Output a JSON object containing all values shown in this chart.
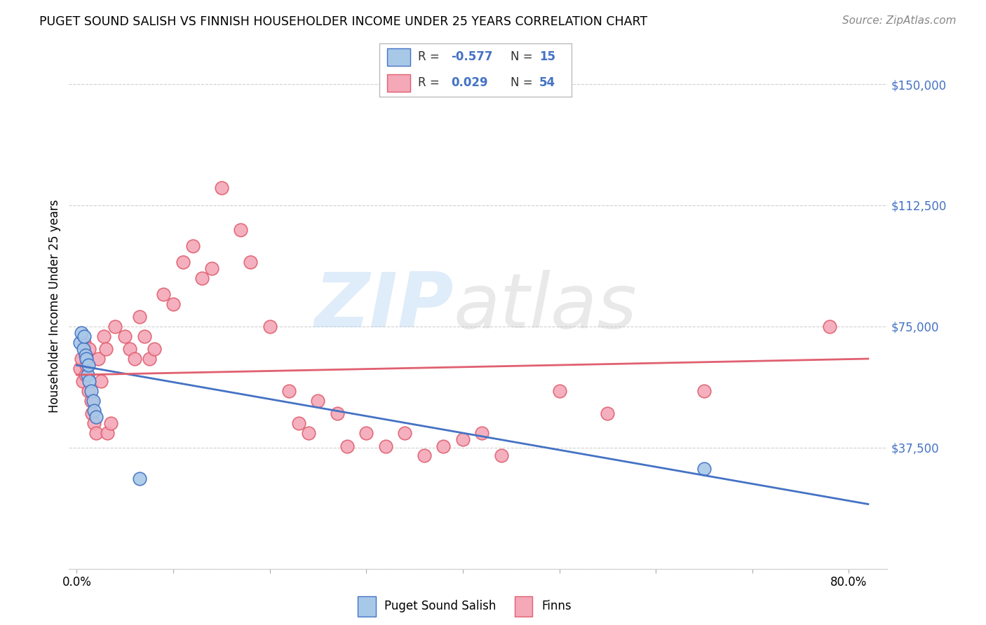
{
  "title": "PUGET SOUND SALISH VS FINNISH HOUSEHOLDER INCOME UNDER 25 YEARS CORRELATION CHART",
  "source": "Source: ZipAtlas.com",
  "ylabel": "Householder Income Under 25 years",
  "ylim": [
    0,
    162500
  ],
  "xlim": [
    -0.008,
    0.84
  ],
  "yticks": [
    0,
    37500,
    75000,
    112500,
    150000
  ],
  "ytick_labels": [
    "",
    "$37,500",
    "$75,000",
    "$112,500",
    "$150,000"
  ],
  "xticks": [
    0.0,
    0.1,
    0.2,
    0.3,
    0.4,
    0.5,
    0.6,
    0.7,
    0.8
  ],
  "xtick_labels": [
    "0.0%",
    "",
    "",
    "",
    "",
    "",
    "",
    "",
    "80.0%"
  ],
  "blue_color": "#a8c8e8",
  "pink_color": "#f4a8b8",
  "blue_line_color": "#4472c4",
  "pink_line_color": "#e06070",
  "blue_scatter_x": [
    0.003,
    0.005,
    0.007,
    0.008,
    0.009,
    0.01,
    0.011,
    0.012,
    0.013,
    0.015,
    0.017,
    0.018,
    0.02,
    0.065,
    0.65
  ],
  "blue_scatter_y": [
    70000,
    73000,
    68000,
    72000,
    66000,
    65000,
    60000,
    63000,
    58000,
    55000,
    52000,
    49000,
    47000,
    28000,
    31000
  ],
  "pink_scatter_x": [
    0.003,
    0.005,
    0.006,
    0.008,
    0.009,
    0.01,
    0.012,
    0.013,
    0.015,
    0.016,
    0.018,
    0.02,
    0.022,
    0.025,
    0.028,
    0.03,
    0.032,
    0.035,
    0.04,
    0.05,
    0.055,
    0.06,
    0.065,
    0.07,
    0.075,
    0.08,
    0.09,
    0.1,
    0.11,
    0.12,
    0.13,
    0.14,
    0.15,
    0.17,
    0.18,
    0.2,
    0.22,
    0.23,
    0.24,
    0.25,
    0.27,
    0.28,
    0.3,
    0.32,
    0.34,
    0.36,
    0.38,
    0.4,
    0.42,
    0.44,
    0.5,
    0.55,
    0.65,
    0.78
  ],
  "pink_scatter_y": [
    62000,
    65000,
    58000,
    70000,
    60000,
    63000,
    55000,
    68000,
    52000,
    48000,
    45000,
    42000,
    65000,
    58000,
    72000,
    68000,
    42000,
    45000,
    75000,
    72000,
    68000,
    65000,
    78000,
    72000,
    65000,
    68000,
    85000,
    82000,
    95000,
    100000,
    90000,
    93000,
    118000,
    105000,
    95000,
    75000,
    55000,
    45000,
    42000,
    52000,
    48000,
    38000,
    42000,
    38000,
    42000,
    35000,
    38000,
    40000,
    42000,
    35000,
    55000,
    48000,
    55000,
    75000
  ]
}
